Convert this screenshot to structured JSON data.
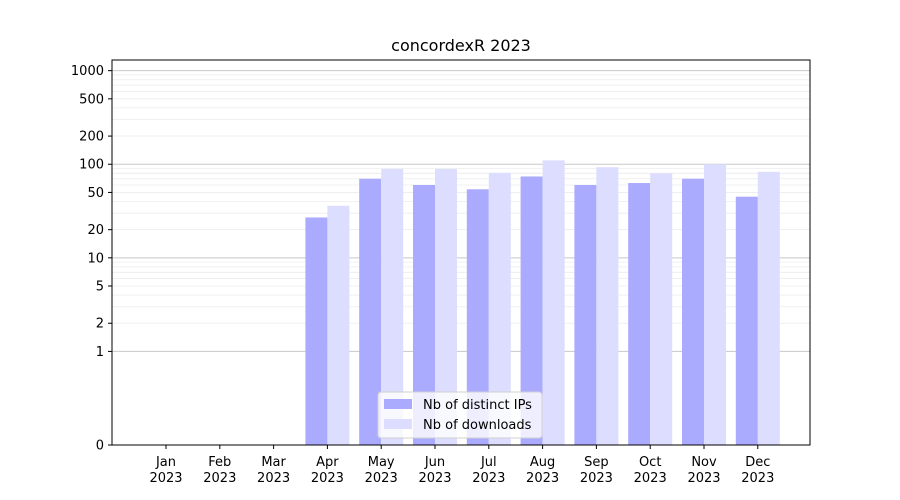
{
  "chart_data": {
    "type": "bar",
    "title": "concordexR 2023",
    "xlabel": "",
    "ylabel": "",
    "yscale": "symlog",
    "ylim": [
      0,
      1300
    ],
    "yticks": [
      0,
      1,
      2,
      5,
      10,
      20,
      50,
      100,
      200,
      500,
      1000
    ],
    "ytick_labels": [
      "0",
      "1",
      "2",
      "5",
      "10",
      "20",
      "50",
      "100",
      "200",
      "500",
      "1000"
    ],
    "grid": true,
    "legend_position": "bottom-center",
    "categories": [
      {
        "month": "Jan",
        "year": "2023"
      },
      {
        "month": "Feb",
        "year": "2023"
      },
      {
        "month": "Mar",
        "year": "2023"
      },
      {
        "month": "Apr",
        "year": "2023"
      },
      {
        "month": "May",
        "year": "2023"
      },
      {
        "month": "Jun",
        "year": "2023"
      },
      {
        "month": "Jul",
        "year": "2023"
      },
      {
        "month": "Aug",
        "year": "2023"
      },
      {
        "month": "Sep",
        "year": "2023"
      },
      {
        "month": "Oct",
        "year": "2023"
      },
      {
        "month": "Nov",
        "year": "2023"
      },
      {
        "month": "Dec",
        "year": "2023"
      }
    ],
    "series": [
      {
        "name": "Nb of distinct IPs",
        "color": "#aaaaff",
        "values": [
          0,
          0,
          0,
          27,
          70,
          60,
          54,
          74,
          60,
          63,
          70,
          45
        ]
      },
      {
        "name": "Nb of downloads",
        "color": "#ddddff",
        "values": [
          0,
          0,
          0,
          36,
          89,
          89,
          81,
          110,
          93,
          80,
          100,
          83
        ]
      }
    ]
  }
}
